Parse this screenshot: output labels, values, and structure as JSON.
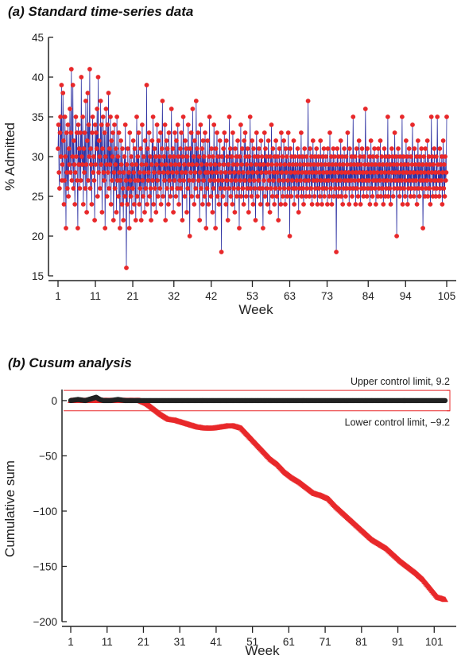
{
  "colors": {
    "series_line": "#2f33a3",
    "marker": "#e8282a",
    "cusum_upper": "#222222",
    "cusum_lower": "#e8282a",
    "limit": "#e8282a",
    "axis": "#222222"
  },
  "chart_data": [
    {
      "type": "line",
      "title": "(a) Standard time-series data",
      "xlabel": "Week",
      "ylabel": "% Admitted",
      "xlim": [
        1,
        105
      ],
      "ylim": [
        15,
        45
      ],
      "xticks": [
        1,
        11,
        21,
        32,
        42,
        53,
        63,
        73,
        84,
        94,
        105
      ],
      "yticks": [
        15,
        20,
        25,
        30,
        35,
        40,
        45
      ],
      "grid": false,
      "x_range": [
        1,
        105
      ],
      "observations_per_unit": 5,
      "series": [
        {
          "values": [
            31,
            34,
            28,
            26,
            33,
            35,
            30,
            39,
            27,
            29,
            38,
            32,
            24,
            27,
            35,
            30,
            21,
            33,
            28,
            26,
            34,
            25,
            31,
            29,
            36,
            28,
            33,
            41,
            27,
            30,
            39,
            26,
            32,
            29,
            24,
            28,
            35,
            30,
            33,
            27,
            21,
            34,
            29,
            31,
            26,
            33,
            27,
            40,
            30,
            29,
            35,
            24,
            31,
            28,
            33,
            26,
            37,
            29,
            23,
            32,
            38,
            27,
            34,
            30,
            41,
            26,
            31,
            29,
            24,
            33,
            35,
            28,
            30,
            27,
            22,
            34,
            29,
            33,
            31,
            36,
            25,
            40,
            28,
            32,
            30,
            26,
            37,
            29,
            34,
            23,
            31,
            35,
            28,
            27,
            33,
            21,
            30,
            36,
            29,
            25,
            34,
            28,
            38,
            26,
            31,
            29,
            35,
            24,
            32,
            27,
            30,
            33,
            22,
            28,
            34,
            26,
            29,
            31,
            23,
            35,
            27,
            30,
            25,
            33,
            28,
            21,
            27,
            32,
            29,
            24,
            31,
            26,
            22,
            28,
            30,
            25,
            34,
            27,
            16,
            29,
            24,
            31,
            26,
            28,
            21,
            33,
            27,
            25,
            30,
            23,
            29,
            26,
            32,
            28,
            24,
            31,
            27,
            22,
            29,
            35,
            25,
            30,
            27,
            33,
            24,
            28,
            26,
            31,
            22,
            29,
            34,
            27,
            25,
            30,
            28,
            23,
            32,
            26,
            29,
            39,
            24,
            31,
            27,
            28,
            33,
            25,
            30,
            26,
            22,
            29,
            32,
            27,
            35,
            24,
            28,
            31,
            26,
            30,
            23,
            29,
            34,
            27,
            25,
            32,
            28,
            30,
            26,
            33,
            24,
            29,
            31,
            37,
            25,
            28,
            30,
            27,
            34,
            22,
            29,
            32,
            26,
            31,
            28,
            24,
            33,
            27,
            30,
            25,
            29,
            36,
            26,
            28,
            31,
            23,
            30,
            27,
            33,
            29,
            25,
            32,
            28,
            26,
            34,
            30,
            24,
            29,
            27,
            31,
            26,
            33,
            28,
            22,
            30,
            35,
            27,
            29,
            25,
            32,
            28,
            31,
            23,
            30,
            26,
            34,
            29,
            27,
            20,
            31,
            28,
            33,
            25,
            29,
            36,
            27,
            30,
            24,
            32,
            28,
            26,
            37,
            29,
            31,
            25,
            33,
            27,
            30,
            22,
            28,
            34,
            26,
            29,
            31,
            24,
            32,
            27,
            30,
            25,
            33,
            28,
            21,
            29,
            26,
            32,
            28,
            24,
            30,
            35,
            27,
            29,
            25,
            31,
            28,
            23,
            30,
            26,
            34,
            27,
            29,
            21,
            31,
            28,
            33,
            25,
            30,
            27,
            24,
            29,
            32,
            26,
            28,
            18,
            30,
            27,
            25,
            31,
            29,
            33,
            26,
            28,
            24,
            32,
            27,
            30,
            22,
            29,
            26,
            35,
            28,
            31,
            25,
            27,
            30,
            24,
            33,
            29,
            26,
            28,
            23,
            31,
            27,
            30,
            25,
            29,
            32,
            26,
            28,
            21,
            30,
            27,
            34,
            25,
            29,
            31,
            26,
            28,
            24,
            32,
            27,
            33,
            30,
            25,
            29,
            26,
            31,
            28,
            23,
            30,
            27,
            35,
            26,
            29,
            25,
            32,
            28,
            24,
            31,
            27,
            30,
            26,
            22,
            29,
            33,
            28,
            25,
            30,
            27,
            31,
            26,
            29,
            24,
            32,
            28,
            30,
            26,
            21,
            29,
            27,
            33,
            25,
            31,
            28,
            30,
            26,
            24,
            29,
            32,
            27,
            28,
            23,
            30,
            26,
            34,
            29,
            25,
            31,
            27,
            28,
            24,
            30,
            26,
            32,
            29,
            25,
            28,
            30,
            22,
            27,
            31,
            26,
            29,
            24,
            33,
            28,
            30,
            25,
            27,
            32,
            26,
            29,
            24,
            31,
            28,
            30,
            25,
            27,
            33,
            26,
            29,
            20,
            31,
            28,
            25,
            30,
            27,
            29,
            26,
            32,
            24,
            28,
            30,
            26,
            29,
            27,
            25,
            31,
            28,
            23,
            30,
            26,
            29,
            27,
            33,
            25,
            28,
            30,
            26,
            24,
            29,
            31,
            27,
            28,
            25,
            30,
            26,
            29,
            37,
            27,
            28,
            25,
            31,
            29,
            26,
            30,
            24,
            28,
            32,
            27,
            29,
            25,
            30,
            26,
            28,
            31,
            27,
            24,
            29,
            30,
            26,
            28,
            25,
            32,
            27,
            29,
            24,
            30,
            26,
            28,
            31,
            25,
            27,
            29,
            30,
            26,
            28,
            24,
            31,
            27,
            29,
            25,
            33,
            28,
            26,
            30,
            24,
            29,
            27,
            31,
            25,
            28,
            30,
            26,
            29,
            18,
            27,
            31,
            28,
            25,
            30,
            26,
            29,
            27,
            32,
            25,
            28,
            30,
            24,
            29,
            26,
            31,
            27,
            28,
            25,
            30,
            26,
            29,
            33,
            27,
            28,
            24,
            31,
            26,
            29,
            27,
            30,
            25,
            28,
            35,
            26,
            29,
            27,
            30,
            24,
            28,
            31,
            26,
            29,
            25,
            27,
            32,
            28,
            30,
            24,
            29,
            26,
            31,
            27,
            28,
            25,
            30,
            26,
            29,
            36,
            27,
            28,
            25,
            31,
            26,
            29,
            27,
            30,
            24,
            28,
            32,
            26,
            29,
            25,
            30,
            27,
            28,
            31,
            26,
            29,
            24,
            27,
            30,
            28,
            25,
            31,
            26,
            29,
            27,
            32,
            25,
            28,
            30,
            26,
            29,
            24,
            27,
            31,
            28,
            25,
            30,
            26,
            29,
            27,
            35,
            25,
            28,
            30,
            26,
            29,
            24,
            27,
            31,
            28,
            30,
            25,
            29,
            26,
            33,
            27,
            28,
            30,
            20,
            29,
            26,
            31,
            27,
            28,
            25,
            30,
            26,
            29,
            27,
            35,
            24,
            28,
            30,
            26,
            29,
            25,
            27,
            32,
            28,
            30,
            24,
            29,
            26,
            31,
            27,
            28,
            25,
            30,
            26,
            29,
            34,
            27,
            28,
            25,
            31,
            26,
            29,
            27,
            30,
            24,
            28,
            32,
            26,
            29,
            25,
            30,
            27,
            28,
            31,
            26,
            29,
            21,
            27,
            30,
            28,
            25,
            31,
            26,
            29,
            27,
            32,
            25,
            28,
            30,
            26,
            29,
            24,
            27,
            35,
            28,
            30,
            25,
            29,
            26,
            31,
            27,
            28,
            25,
            30,
            26,
            35,
            29,
            27,
            28,
            25,
            31,
            26,
            29,
            27,
            30,
            24,
            28,
            32,
            26,
            29,
            25,
            30,
            27,
            28,
            35
          ]
        }
      ]
    },
    {
      "type": "line",
      "title": "(b) Cusum analysis",
      "xlabel": "Week",
      "ylabel": "Cumulative sum",
      "xlim": [
        1,
        105
      ],
      "ylim": [
        -200,
        10
      ],
      "xticks": [
        1,
        11,
        21,
        31,
        41,
        51,
        61,
        71,
        81,
        91,
        101
      ],
      "yticks": [
        0,
        -50,
        -100,
        -150,
        -200
      ],
      "grid": false,
      "reference_lines": [
        {
          "label": "Upper control limit, 9.2",
          "value": 9.2
        },
        {
          "label": "Lower control limit, −9.2",
          "value": -9.2
        }
      ],
      "series": [
        {
          "marker": "circle",
          "color": "#222222",
          "points": [
            [
              1,
              0
            ],
            [
              3,
              1
            ],
            [
              5,
              0
            ],
            [
              7,
              2
            ],
            [
              8,
              3
            ],
            [
              9,
              1
            ],
            [
              10,
              0
            ],
            [
              12,
              0
            ],
            [
              14,
              1
            ],
            [
              16,
              0
            ],
            [
              18,
              0
            ],
            [
              22,
              0
            ],
            [
              30,
              0
            ],
            [
              40,
              0
            ],
            [
              50,
              0
            ],
            [
              60,
              0
            ],
            [
              70,
              0
            ],
            [
              80,
              0
            ],
            [
              90,
              0
            ],
            [
              100,
              0
            ],
            [
              104,
              0
            ]
          ]
        },
        {
          "marker": "triangle",
          "color": "#e8282a",
          "points": [
            [
              1,
              0
            ],
            [
              20,
              0
            ],
            [
              22,
              -3
            ],
            [
              24,
              -8
            ],
            [
              26,
              -13
            ],
            [
              28,
              -17
            ],
            [
              30,
              -18
            ],
            [
              32,
              -20
            ],
            [
              34,
              -22
            ],
            [
              36,
              -24
            ],
            [
              38,
              -25
            ],
            [
              40,
              -25
            ],
            [
              42,
              -24
            ],
            [
              44,
              -23
            ],
            [
              46,
              -23
            ],
            [
              48,
              -25
            ],
            [
              50,
              -32
            ],
            [
              52,
              -39
            ],
            [
              54,
              -46
            ],
            [
              56,
              -53
            ],
            [
              58,
              -58
            ],
            [
              60,
              -65
            ],
            [
              62,
              -70
            ],
            [
              64,
              -74
            ],
            [
              66,
              -79
            ],
            [
              68,
              -84
            ],
            [
              70,
              -86
            ],
            [
              72,
              -89
            ],
            [
              74,
              -96
            ],
            [
              76,
              -102
            ],
            [
              78,
              -108
            ],
            [
              80,
              -114
            ],
            [
              82,
              -120
            ],
            [
              84,
              -126
            ],
            [
              86,
              -130
            ],
            [
              88,
              -134
            ],
            [
              90,
              -140
            ],
            [
              92,
              -146
            ],
            [
              94,
              -151
            ],
            [
              96,
              -156
            ],
            [
              98,
              -162
            ],
            [
              100,
              -170
            ],
            [
              102,
              -178
            ],
            [
              104,
              -180
            ]
          ]
        }
      ]
    }
  ]
}
